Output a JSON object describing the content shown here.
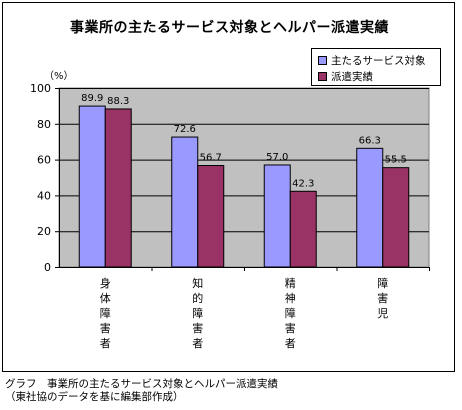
{
  "chart_data": {
    "type": "bar",
    "title": "事業所の主たるサービス対象とヘルパー派遣実績",
    "unit": "（%）",
    "categories": [
      "身体障害者",
      "知的障害者",
      "精神障害者",
      "障害児"
    ],
    "series": [
      {
        "name": "主たるサービス対象",
        "color": "#9999ff",
        "values": [
          89.9,
          72.6,
          57.0,
          66.3
        ],
        "labels": [
          "89.9",
          "72.6",
          "57.0",
          "66.3"
        ]
      },
      {
        "name": "派遣実績",
        "color": "#993366",
        "values": [
          88.3,
          56.7,
          42.3,
          55.5
        ],
        "labels": [
          "88.3",
          "56.7",
          "42.3",
          "55.5"
        ]
      }
    ],
    "ylim": [
      0,
      100
    ],
    "yticks": [
      0,
      20,
      40,
      60,
      80,
      100
    ],
    "plot_background": "#c0c0c0",
    "grid": true,
    "legend_position": "top-right"
  },
  "caption": {
    "line1": "グラフ　事業所の主たるサービス対象とヘルパー派遣実績",
    "line2": "（東社協のデータを基に編集部作成）"
  }
}
